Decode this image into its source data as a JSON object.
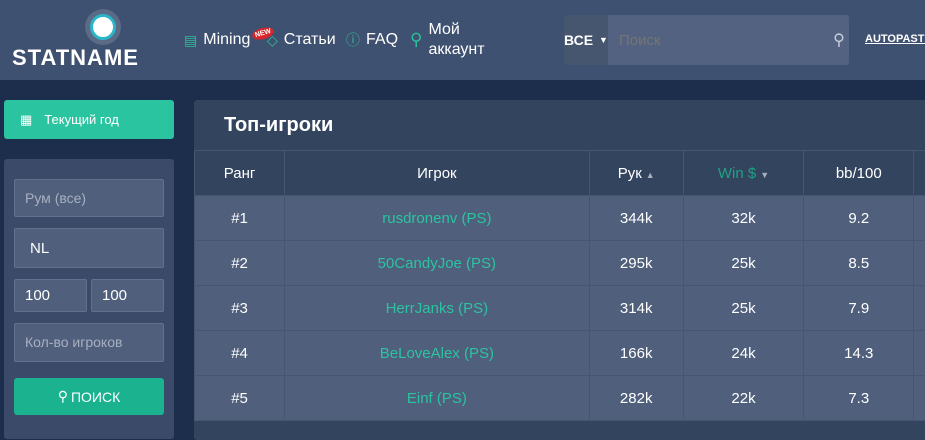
{
  "header": {
    "logo": "STATNAME",
    "nav": [
      {
        "label": "Mining",
        "icon": "newspaper-icon",
        "badge": "NEW"
      },
      {
        "label": "Статьи",
        "icon": "diamond-icon"
      },
      {
        "label": "FAQ",
        "icon": "question-icon"
      },
      {
        "label": "Мой аккаунт",
        "icon": "user-icon"
      }
    ],
    "search": {
      "category": "ВСЕ",
      "placeholder": "Поиск"
    },
    "autopaste": "AUTOPASTE"
  },
  "sidebar": {
    "period_button": "Текущий год",
    "room_placeholder": "Рум (все)",
    "game": "NL",
    "limit_min": "100",
    "limit_max": "100",
    "players_placeholder": "Кол-во игроков",
    "search_button": "ПОИСК"
  },
  "main": {
    "title": "Топ-игроки",
    "columns": [
      "Ранг",
      "Игрок",
      "Рук",
      "Win $",
      "bb/100"
    ],
    "rows": [
      {
        "rank": "#1",
        "player": "rusdronenv (PS)",
        "hands": "344k",
        "win": "32k",
        "bb": "9.2"
      },
      {
        "rank": "#2",
        "player": "50CandyJoe (PS)",
        "hands": "295k",
        "win": "25k",
        "bb": "8.5"
      },
      {
        "rank": "#3",
        "player": "HerrJanks (PS)",
        "hands": "314k",
        "win": "25k",
        "bb": "7.9"
      },
      {
        "rank": "#4",
        "player": "BeLoveAlex (PS)",
        "hands": "166k",
        "win": "24k",
        "bb": "14.3"
      },
      {
        "rank": "#5",
        "player": "Einf (PS)",
        "hands": "282k",
        "win": "22k",
        "bb": "7.3"
      }
    ]
  },
  "colors": {
    "accent": "#2bc4a0",
    "header": "#3f5170",
    "background": "#1d2d4c"
  }
}
